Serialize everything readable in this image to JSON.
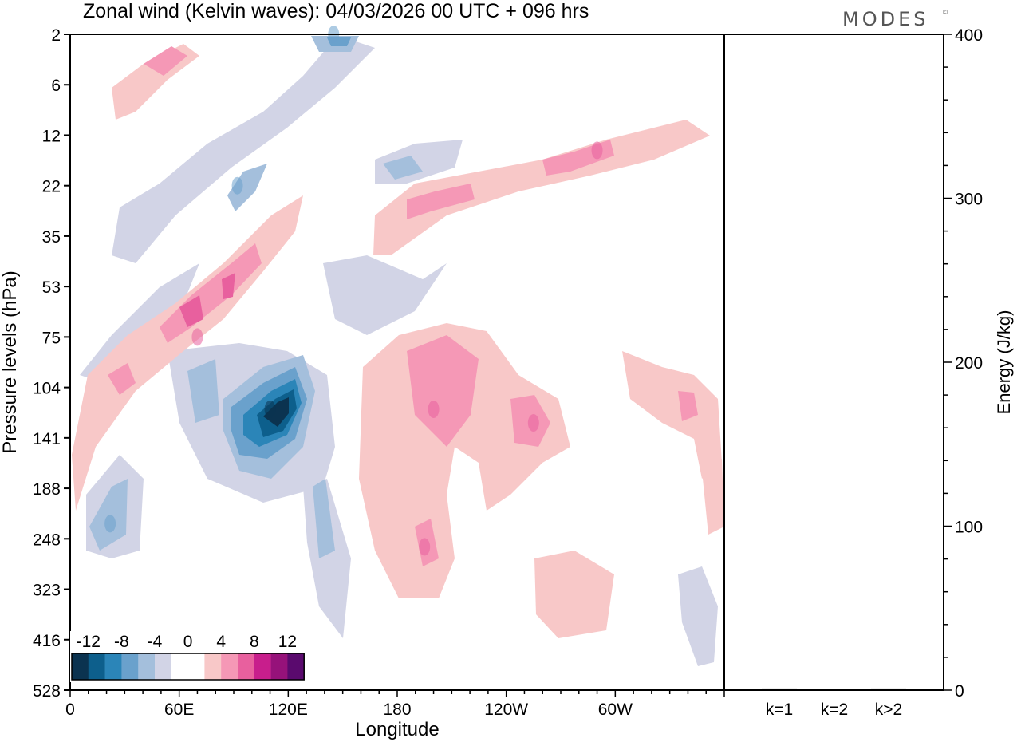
{
  "chart_data": [
    {
      "type": "heatmap",
      "title": "Zonal wind (Kelvin waves):  04/03/2026  00 UTC  + 096 hrs",
      "xlabel": "Longitude",
      "ylabel": "Pressure levels (hPa)",
      "x_ticks": [
        "0",
        "60E",
        "120E",
        "180",
        "120W",
        "60W"
      ],
      "y_ticks": [
        "2",
        "6",
        "12",
        "22",
        "35",
        "53",
        "75",
        "104",
        "141",
        "188",
        "248",
        "323",
        "416",
        "528"
      ],
      "legend": {
        "placement": "bottom-left",
        "labels": [
          "-12",
          "-8",
          "-4",
          "0",
          "4",
          "8",
          "12"
        ],
        "colors": [
          "#0b3350",
          "#0d5f8c",
          "#2b85b8",
          "#6aa1cc",
          "#a4bfdc",
          "#d2d4e6",
          "#ffffff",
          "#ffffff",
          "#f8c8c8",
          "#f598b6",
          "#e8609e",
          "#c81e8c",
          "#96127a",
          "#5a0a6e"
        ]
      },
      "features": [
        {
          "sign": "negative",
          "peak": -16,
          "lon": 110,
          "level_hpa": 120
        },
        {
          "sign": "negative",
          "peak": -8,
          "lon": 145,
          "level_hpa": 2
        },
        {
          "sign": "negative",
          "peak": -8,
          "lon": 92,
          "level_hpa": 22
        },
        {
          "sign": "negative",
          "peak": -6,
          "lon": 22,
          "level_hpa": 230
        },
        {
          "sign": "positive",
          "peak": 8,
          "lon": 70,
          "level_hpa": 75
        },
        {
          "sign": "positive",
          "peak": 8,
          "lon": 200,
          "level_hpa": 120
        },
        {
          "sign": "positive",
          "peak": 6,
          "lon": 255,
          "level_hpa": 130
        },
        {
          "sign": "positive",
          "peak": 6,
          "lon": 195,
          "level_hpa": 260
        },
        {
          "sign": "positive",
          "peak": 6,
          "lon": 290,
          "level_hpa": 15
        }
      ]
    },
    {
      "type": "bar",
      "ylabel": "Energy (J/kg)",
      "categories": [
        "k=1",
        "k=2",
        "k>2"
      ],
      "values": [
        1,
        0.5,
        1
      ],
      "ylim": [
        0,
        400
      ],
      "y_ticks": [
        "0",
        "100",
        "200",
        "300",
        "400"
      ]
    }
  ],
  "brand": "MODES",
  "brand_mark": "©"
}
